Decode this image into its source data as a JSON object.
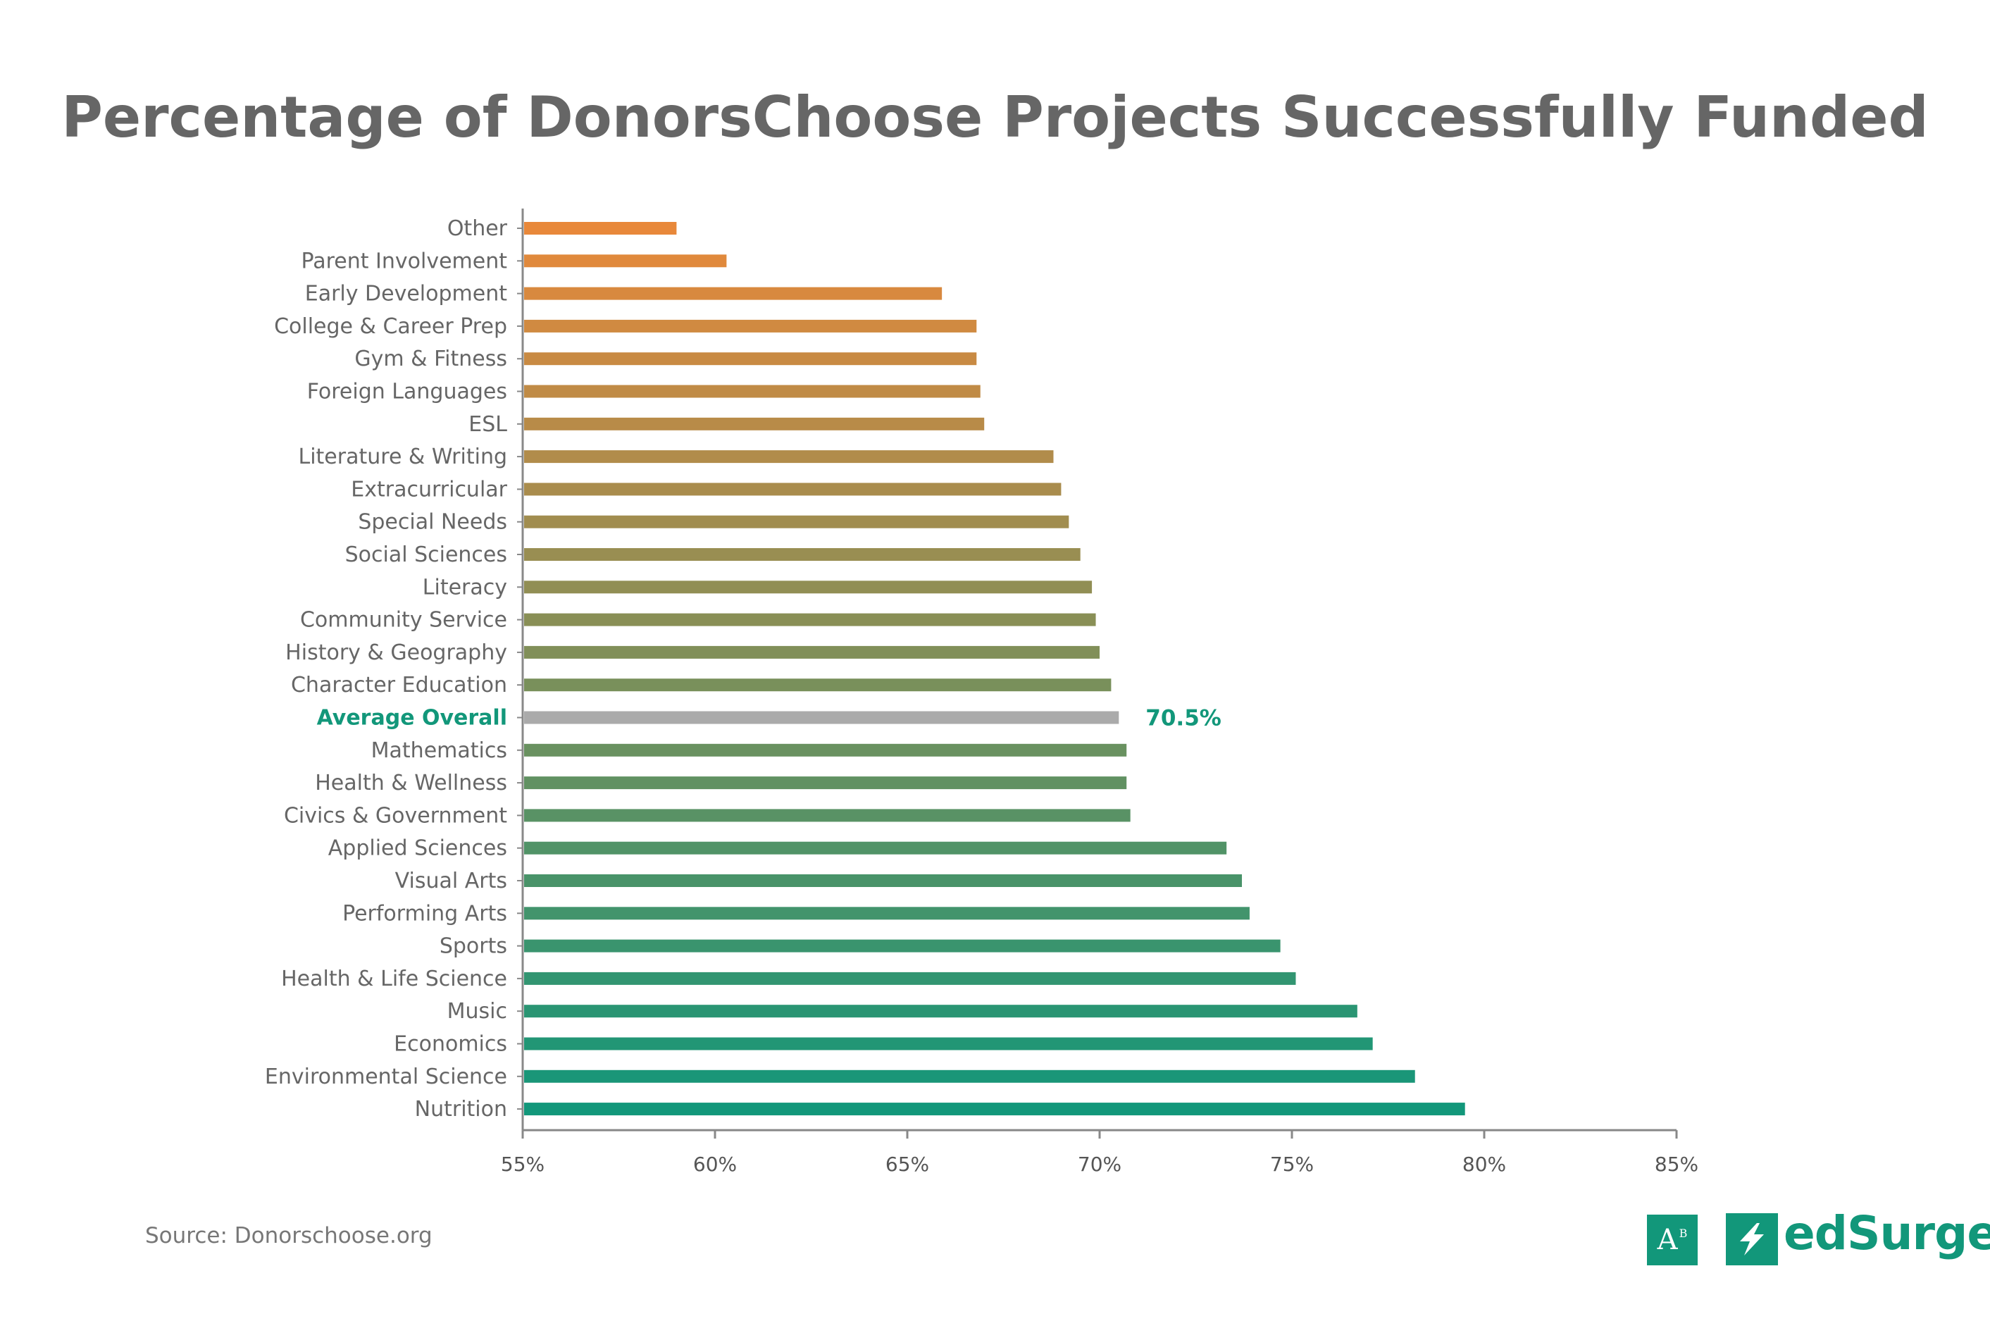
{
  "title": "Percentage of DonorsChoose Projects Successfully Funded",
  "source": "Source: Donorschoose.org",
  "logos": {
    "ab_letters": "A",
    "ab_superscript": "B",
    "brand": "edSurge",
    "bolt_icon": "lightning-bolt-icon"
  },
  "colors": {
    "accent": "#12977a",
    "average_bar": "#aaaaaa",
    "top_bar": "#e8883a",
    "bottom_bar": "#12977a"
  },
  "chart_data": {
    "type": "bar",
    "orientation": "horizontal",
    "title": "Percentage of DonorsChoose Projects Successfully Funded",
    "xlabel": "",
    "ylabel": "",
    "xlim": [
      55,
      85
    ],
    "x_ticks": [
      "55%",
      "60%",
      "65%",
      "70%",
      "75%",
      "80%",
      "85%"
    ],
    "grid": false,
    "categories": [
      "Other",
      "Parent Involvement",
      "Early Development",
      "College & Career Prep",
      "Gym & Fitness",
      "Foreign Languages",
      "ESL",
      "Literature & Writing",
      "Extracurricular",
      "Special Needs",
      "Social Sciences",
      "Literacy",
      "Community Service",
      "History & Geography",
      "Character Education",
      "Average Overall",
      "Mathematics",
      "Health & Wellness",
      "Civics & Government",
      "Applied Sciences",
      "Visual Arts",
      "Performing Arts",
      "Sports",
      "Health & Life Science",
      "Music",
      "Economics",
      "Environmental Science",
      "Nutrition"
    ],
    "values": [
      59.0,
      60.3,
      65.9,
      66.8,
      66.8,
      66.9,
      67.0,
      68.8,
      69.0,
      69.2,
      69.5,
      69.8,
      69.9,
      70.0,
      70.3,
      70.5,
      70.7,
      70.7,
      70.8,
      73.3,
      73.7,
      73.9,
      74.7,
      75.1,
      76.7,
      77.1,
      78.2,
      79.5
    ],
    "highlight": {
      "category": "Average Overall",
      "label": "70.5%"
    }
  }
}
